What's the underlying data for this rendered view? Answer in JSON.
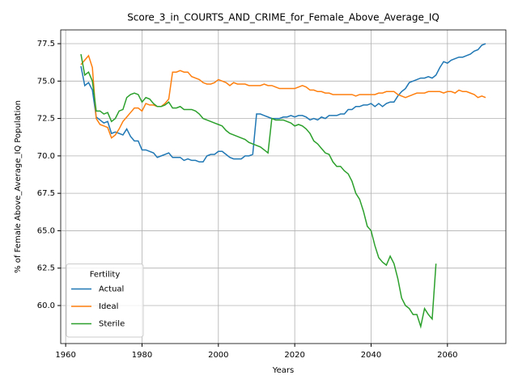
{
  "chart_data": {
    "type": "line",
    "title": "Score_3_in_COURTS_AND_CRIME_for_Female_Above_Average_IQ",
    "xlabel": "Years",
    "ylabel": "% of Female Above_Average_IQ Population",
    "legend_title": "Fertility",
    "legend": "lower left",
    "grid": true,
    "xlim": [
      1958.7,
      2075.3
    ],
    "ylim": [
      57.46,
      78.42
    ],
    "xticks": [
      1960,
      1980,
      2000,
      2020,
      2040,
      2060
    ],
    "yticks": [
      {
        "value": 60,
        "label": "60.0"
      },
      62.5,
      {
        "value": 65,
        "label": "65.0"
      },
      67.5,
      {
        "value": 70,
        "label": "70.0"
      },
      72.5,
      {
        "value": 75,
        "label": "75.0"
      },
      77.5
    ],
    "x": [
      1964,
      1965,
      1966,
      1967,
      1968,
      1969,
      1970,
      1971,
      1972,
      1973,
      1974,
      1975,
      1976,
      1977,
      1978,
      1979,
      1980,
      1981,
      1982,
      1983,
      1984,
      1985,
      1986,
      1987,
      1988,
      1989,
      1990,
      1991,
      1992,
      1993,
      1994,
      1995,
      1996,
      1997,
      1998,
      1999,
      2000,
      2001,
      2002,
      2003,
      2004,
      2005,
      2006,
      2007,
      2008,
      2009,
      2010,
      2011,
      2012,
      2013,
      2014,
      2015,
      2016,
      2017,
      2018,
      2019,
      2020,
      2021,
      2022,
      2023,
      2024,
      2025,
      2026,
      2027,
      2028,
      2029,
      2030,
      2031,
      2032,
      2033,
      2034,
      2035,
      2036,
      2037,
      2038,
      2039,
      2040,
      2041,
      2042,
      2043,
      2044,
      2045,
      2046,
      2047,
      2048,
      2049,
      2050,
      2051,
      2052,
      2053,
      2054,
      2055,
      2056,
      2057,
      2058,
      2059,
      2060,
      2061,
      2062,
      2063,
      2064,
      2065,
      2066,
      2067,
      2068,
      2069,
      2070
    ],
    "series": [
      {
        "name": "Actual",
        "color": "#1f77b4",
        "values": [
          76.0,
          74.7,
          74.9,
          74.4,
          72.6,
          72.4,
          72.2,
          72.3,
          71.5,
          71.6,
          71.5,
          71.4,
          71.8,
          71.3,
          71.0,
          71.0,
          70.4,
          70.4,
          70.3,
          70.2,
          69.9,
          70.0,
          70.1,
          70.2,
          69.9,
          69.9,
          69.9,
          69.7,
          69.8,
          69.7,
          69.7,
          69.6,
          69.6,
          70.0,
          70.1,
          70.1,
          70.3,
          70.3,
          70.1,
          69.9,
          69.8,
          69.8,
          69.8,
          70.0,
          70.0,
          70.1,
          72.8,
          72.8,
          72.7,
          72.6,
          72.5,
          72.5,
          72.5,
          72.6,
          72.6,
          72.7,
          72.6,
          72.7,
          72.7,
          72.6,
          72.4,
          72.5,
          72.4,
          72.6,
          72.5,
          72.7,
          72.7,
          72.7,
          72.8,
          72.8,
          73.1,
          73.1,
          73.3,
          73.3,
          73.4,
          73.4,
          73.5,
          73.3,
          73.5,
          73.3,
          73.5,
          73.6,
          73.6,
          74.0,
          74.3,
          74.5,
          74.9,
          75.0,
          75.1,
          75.2,
          75.2,
          75.3,
          75.2,
          75.4,
          75.9,
          76.3,
          76.2,
          76.4,
          76.5,
          76.6,
          76.6,
          76.7,
          76.8,
          77.0,
          77.1,
          77.4,
          77.5
        ]
      },
      {
        "name": "Ideal",
        "color": "#ff7f0e",
        "values": [
          76.1,
          76.4,
          76.7,
          75.9,
          72.5,
          72.1,
          72.0,
          71.9,
          71.2,
          71.4,
          71.8,
          72.3,
          72.6,
          72.9,
          73.2,
          73.2,
          73.0,
          73.5,
          73.4,
          73.4,
          73.3,
          73.3,
          73.5,
          73.8,
          75.6,
          75.6,
          75.7,
          75.6,
          75.6,
          75.3,
          75.2,
          75.1,
          74.9,
          74.8,
          74.8,
          74.9,
          75.1,
          75.0,
          74.9,
          74.7,
          74.9,
          74.8,
          74.8,
          74.8,
          74.7,
          74.7,
          74.7,
          74.7,
          74.8,
          74.7,
          74.7,
          74.6,
          74.5,
          74.5,
          74.5,
          74.5,
          74.5,
          74.6,
          74.7,
          74.6,
          74.4,
          74.4,
          74.3,
          74.3,
          74.2,
          74.2,
          74.1,
          74.1,
          74.1,
          74.1,
          74.1,
          74.1,
          74.0,
          74.1,
          74.1,
          74.1,
          74.1,
          74.1,
          74.2,
          74.2,
          74.3,
          74.3,
          74.3,
          74.1,
          74.0,
          73.9,
          74.0,
          74.1,
          74.2,
          74.2,
          74.2,
          74.3,
          74.3,
          74.3,
          74.3,
          74.2,
          74.3,
          74.3,
          74.2,
          74.4,
          74.3,
          74.3,
          74.2,
          74.1,
          73.9,
          74.0,
          73.9
        ]
      },
      {
        "name": "Sterile",
        "color": "#2ca02c",
        "values": [
          76.8,
          75.4,
          75.6,
          75.0,
          73.0,
          73.0,
          72.8,
          72.9,
          72.3,
          72.5,
          73.0,
          73.1,
          73.9,
          74.1,
          74.2,
          74.1,
          73.6,
          73.9,
          73.8,
          73.5,
          73.3,
          73.3,
          73.4,
          73.6,
          73.2,
          73.2,
          73.3,
          73.1,
          73.1,
          73.1,
          73.0,
          72.8,
          72.5,
          72.4,
          72.3,
          72.2,
          72.1,
          72.0,
          71.7,
          71.5,
          71.4,
          71.3,
          71.2,
          71.1,
          70.9,
          70.8,
          70.7,
          70.6,
          70.4,
          70.2,
          72.5,
          72.4,
          72.4,
          72.4,
          72.3,
          72.2,
          72.0,
          72.1,
          72.0,
          71.8,
          71.5,
          71.0,
          70.8,
          70.5,
          70.2,
          70.1,
          69.6,
          69.3,
          69.3,
          69.0,
          68.8,
          68.3,
          67.5,
          67.1,
          66.3,
          65.3,
          65.0,
          64.0,
          63.2,
          62.9,
          62.7,
          63.3,
          62.8,
          61.8,
          60.5,
          60.0,
          59.8,
          59.4,
          59.4,
          58.6,
          59.8,
          59.4,
          59.1,
          62.8,
          null,
          null,
          null,
          null,
          null,
          null,
          null,
          null,
          null,
          null,
          null,
          null,
          null
        ]
      }
    ]
  }
}
